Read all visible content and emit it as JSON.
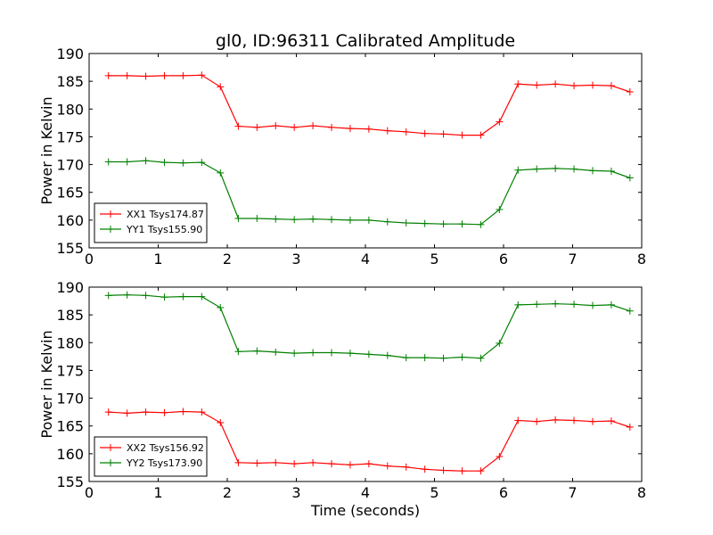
{
  "chart_data": {
    "title": "gl0, ID:96311 Calibrated Amplitude",
    "xlabel": "Time (seconds)",
    "type": "line",
    "grid": false,
    "panels": [
      {
        "ylabel": "Power in Kelvin",
        "xlim": [
          0,
          8
        ],
        "ylim": [
          155,
          190
        ],
        "xticks": [
          "0",
          "1",
          "2",
          "3",
          "4",
          "5",
          "6",
          "7",
          "8"
        ],
        "yticks": [
          "155",
          "160",
          "165",
          "170",
          "175",
          "180",
          "185",
          "190"
        ],
        "legend_position": "lower-left",
        "series": [
          {
            "name": "XX1 Tsys174.87",
            "color": "#ff0000",
            "x": [
              0.28,
              0.55,
              0.82,
              1.09,
              1.36,
              1.63,
              1.9,
              2.16,
              2.43,
              2.7,
              2.97,
              3.24,
              3.51,
              3.78,
              4.05,
              4.32,
              4.59,
              4.86,
              5.13,
              5.4,
              5.67,
              5.94,
              6.21,
              6.48,
              6.75,
              7.02,
              7.29,
              7.56,
              7.83
            ],
            "y": [
              186.0,
              186.0,
              185.9,
              186.0,
              186.0,
              186.1,
              184.0,
              176.9,
              176.7,
              177.0,
              176.7,
              177.0,
              176.7,
              176.5,
              176.4,
              176.1,
              175.9,
              175.6,
              175.5,
              175.3,
              175.3,
              177.7,
              184.5,
              184.3,
              184.5,
              184.2,
              184.3,
              184.2,
              183.1
            ]
          },
          {
            "name": "YY1 Tsys155.90",
            "color": "#008000",
            "x": [
              0.28,
              0.55,
              0.82,
              1.09,
              1.36,
              1.63,
              1.9,
              2.16,
              2.43,
              2.7,
              2.97,
              3.24,
              3.51,
              3.78,
              4.05,
              4.32,
              4.59,
              4.86,
              5.13,
              5.4,
              5.67,
              5.94,
              6.21,
              6.48,
              6.75,
              7.02,
              7.29,
              7.56,
              7.83
            ],
            "y": [
              170.5,
              170.5,
              170.7,
              170.4,
              170.3,
              170.4,
              168.5,
              160.3,
              160.3,
              160.2,
              160.1,
              160.2,
              160.1,
              160.0,
              160.0,
              159.7,
              159.5,
              159.4,
              159.3,
              159.3,
              159.2,
              161.9,
              169.0,
              169.2,
              169.3,
              169.2,
              168.9,
              168.8,
              167.6
            ]
          }
        ]
      },
      {
        "ylabel": "Power in Kelvin",
        "xlim": [
          0,
          8
        ],
        "ylim": [
          155,
          190
        ],
        "xticks": [
          "0",
          "1",
          "2",
          "3",
          "4",
          "5",
          "6",
          "7",
          "8"
        ],
        "yticks": [
          "155",
          "160",
          "165",
          "170",
          "175",
          "180",
          "185",
          "190"
        ],
        "legend_position": "lower-left",
        "series": [
          {
            "name": "XX2 Tsys156.92",
            "color": "#ff0000",
            "x": [
              0.28,
              0.55,
              0.82,
              1.09,
              1.36,
              1.63,
              1.9,
              2.16,
              2.43,
              2.7,
              2.97,
              3.24,
              3.51,
              3.78,
              4.05,
              4.32,
              4.59,
              4.86,
              5.13,
              5.4,
              5.67,
              5.94,
              6.21,
              6.48,
              6.75,
              7.02,
              7.29,
              7.56,
              7.83
            ],
            "y": [
              167.5,
              167.3,
              167.5,
              167.4,
              167.6,
              167.5,
              165.6,
              158.4,
              158.3,
              158.4,
              158.2,
              158.4,
              158.2,
              158.0,
              158.2,
              157.8,
              157.6,
              157.2,
              157.0,
              156.9,
              156.9,
              159.5,
              166.0,
              165.8,
              166.1,
              166.0,
              165.8,
              165.9,
              164.8
            ]
          },
          {
            "name": "YY2 Tsys173.90",
            "color": "#008000",
            "x": [
              0.28,
              0.55,
              0.82,
              1.09,
              1.36,
              1.63,
              1.9,
              2.16,
              2.43,
              2.7,
              2.97,
              3.24,
              3.51,
              3.78,
              4.05,
              4.32,
              4.59,
              4.86,
              5.13,
              5.4,
              5.67,
              5.94,
              6.21,
              6.48,
              6.75,
              7.02,
              7.29,
              7.56,
              7.83
            ],
            "y": [
              188.5,
              188.6,
              188.5,
              188.2,
              188.3,
              188.3,
              186.3,
              178.4,
              178.5,
              178.3,
              178.1,
              178.2,
              178.2,
              178.1,
              177.9,
              177.7,
              177.3,
              177.3,
              177.2,
              177.4,
              177.2,
              179.9,
              186.8,
              186.9,
              187.0,
              186.9,
              186.7,
              186.8,
              185.7
            ]
          }
        ]
      }
    ]
  }
}
